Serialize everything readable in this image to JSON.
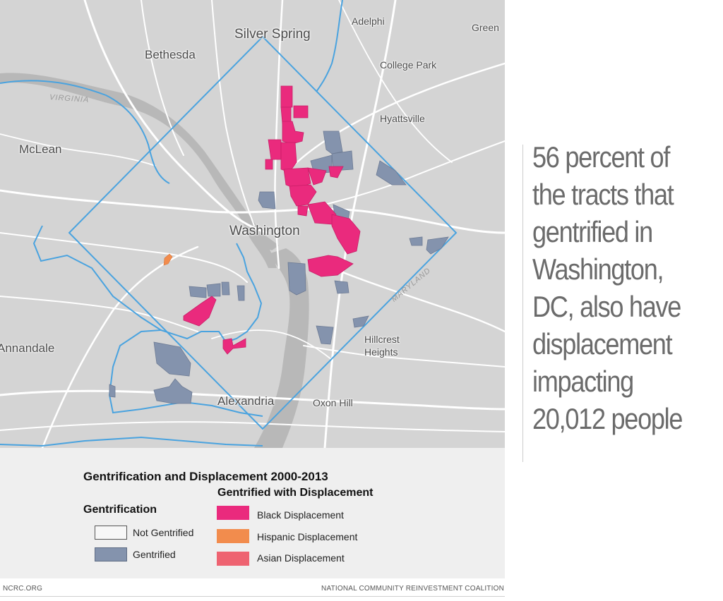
{
  "map": {
    "places": {
      "silver_spring": "Silver Spring",
      "adelphi": "Adelphi",
      "greenbelt": "Green",
      "bethesda": "Bethesda",
      "college_park": "College Park",
      "hyattsville": "Hyattsville",
      "mclean": "McLean",
      "washington": "Washington",
      "annandale": "Annandale",
      "hillcrest_heights_1": "Hillcrest",
      "hillcrest_heights_2": "Heights",
      "alexandria": "Alexandria",
      "oxon_hill": "Oxon Hill",
      "virginia": "VIRGINIA",
      "maryland": "MARYLAND"
    },
    "colors": {
      "background": "#d4d4d4",
      "roads": "#ffffff",
      "boundary": "#4aa3df",
      "river": "#b8b8b8",
      "gentrified": "#8493ad",
      "black_displacement": "#ea2a7d",
      "hispanic_displacement": "#f28c4d",
      "asian_displacement": "#ee6371"
    }
  },
  "legend": {
    "title": "Gentrification and Displacement 2000-2013",
    "displacement_heading": "Gentrified with Displacement",
    "gentrification_heading": "Gentrification",
    "not_gentrified": "Not Gentrified",
    "gentrified": "Gentrified",
    "black_displacement": "Black Displacement",
    "hispanic_displacement": "Hispanic Displacement",
    "asian_displacement": "Asian Displacement"
  },
  "footer": {
    "left": "NCRC.ORG",
    "right": "NATIONAL COMMUNITY REINVESTMENT COALITION"
  },
  "callout": {
    "text": "56 percent of the tracts that gentrified in Washington, DC, also have displacement impacting 20,012 people"
  }
}
